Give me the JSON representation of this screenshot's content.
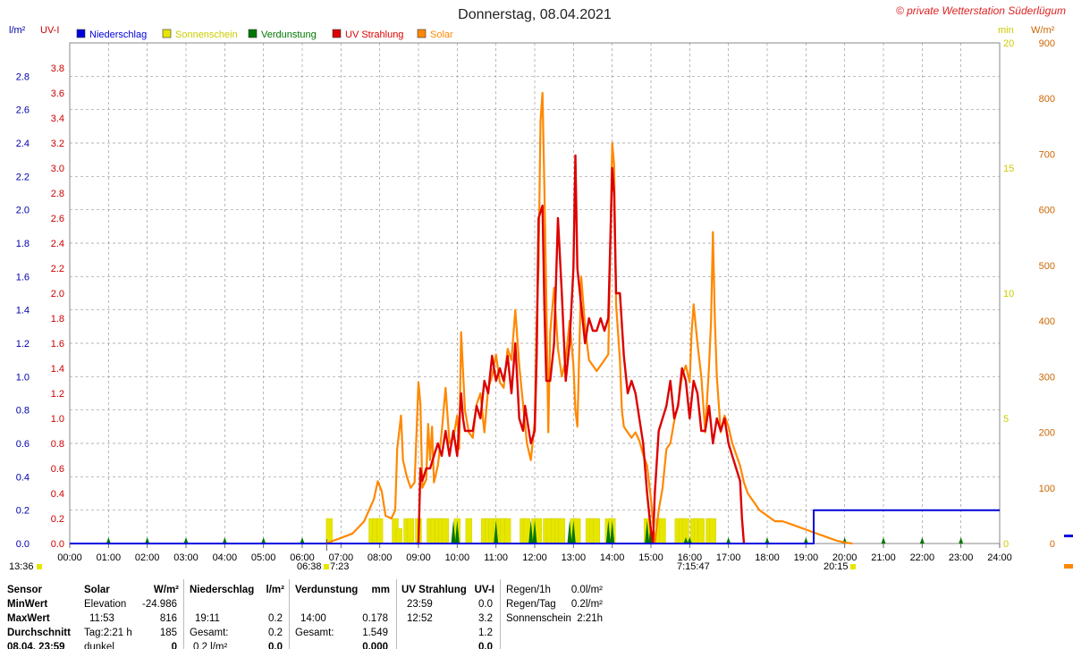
{
  "title": "Donnerstag, 08.04.2021",
  "copyright": "© private Wetterstation Süderlügum",
  "units": {
    "rain": "l/m²",
    "uv": "UV-I",
    "sun": "min",
    "solar": "W/m²"
  },
  "legend": [
    {
      "name": "Niederschlag",
      "color": "#0000dd"
    },
    {
      "name": "Sonnenschein",
      "color": "#e6e600"
    },
    {
      "name": "Verdunstung",
      "color": "#007700"
    },
    {
      "name": "UV Strahlung",
      "color": "#dd0000"
    },
    {
      "name": "Solar",
      "color": "#ff8800"
    }
  ],
  "markers": {
    "left_time": "13:36",
    "sunrise": "06:38",
    "sunrise2": "7:23",
    "solar_noon": "7:15:47",
    "sunset": "20:15"
  },
  "chart_data": {
    "type": "line",
    "title": "Donnerstag, 08.04.2021",
    "x_ticks": [
      "00:00",
      "01:00",
      "02:00",
      "03:00",
      "04:00",
      "05:00",
      "06:00",
      "07:00",
      "08:00",
      "09:00",
      "10:00",
      "11:00",
      "12:00",
      "13:00",
      "14:00",
      "15:00",
      "16:00",
      "17:00",
      "18:00",
      "19:00",
      "20:00",
      "21:00",
      "22:00",
      "23:00",
      "24:00"
    ],
    "axes": {
      "rain": {
        "label": "l/m²",
        "min": 0,
        "max": 3.0,
        "ticks": [
          "0.0",
          "0.2",
          "0.4",
          "0.6",
          "0.8",
          "1.0",
          "1.2",
          "1.4",
          "1.6",
          "1.8",
          "2.0",
          "2.2",
          "2.4",
          "2.6",
          "2.8"
        ]
      },
      "uv": {
        "label": "UV-I",
        "min": 0,
        "max": 4.0,
        "ticks": [
          "0.0",
          "0.2",
          "0.4",
          "0.6",
          "0.8",
          "1.0",
          "1.2",
          "1.4",
          "1.6",
          "1.8",
          "2.0",
          "2.2",
          "2.4",
          "2.6",
          "2.8",
          "3.0",
          "3.2",
          "3.4",
          "3.6",
          "3.8"
        ]
      },
      "sun": {
        "label": "min",
        "min": 0,
        "max": 20,
        "ticks": [
          "0",
          "5",
          "10",
          "15",
          "20"
        ]
      },
      "solar": {
        "label": "W/m²",
        "min": 0,
        "max": 900,
        "ticks": [
          "0",
          "100",
          "200",
          "300",
          "400",
          "500",
          "600",
          "700",
          "800",
          "900"
        ]
      }
    },
    "series": {
      "solar": [
        [
          6.6,
          0
        ],
        [
          6.8,
          5
        ],
        [
          7.0,
          10
        ],
        [
          7.3,
          18
        ],
        [
          7.6,
          40
        ],
        [
          7.85,
          80
        ],
        [
          7.95,
          112
        ],
        [
          8.05,
          95
        ],
        [
          8.15,
          50
        ],
        [
          8.3,
          45
        ],
        [
          8.4,
          60
        ],
        [
          8.45,
          170
        ],
        [
          8.55,
          230
        ],
        [
          8.6,
          150
        ],
        [
          8.7,
          120
        ],
        [
          8.8,
          100
        ],
        [
          8.9,
          110
        ],
        [
          9.0,
          290
        ],
        [
          9.05,
          250
        ],
        [
          9.1,
          100
        ],
        [
          9.2,
          115
        ],
        [
          9.25,
          215
        ],
        [
          9.3,
          150
        ],
        [
          9.35,
          210
        ],
        [
          9.4,
          110
        ],
        [
          9.5,
          140
        ],
        [
          9.6,
          200
        ],
        [
          9.7,
          280
        ],
        [
          9.8,
          180
        ],
        [
          9.9,
          190
        ],
        [
          10.0,
          230
        ],
        [
          10.05,
          170
        ],
        [
          10.1,
          380
        ],
        [
          10.2,
          240
        ],
        [
          10.3,
          200
        ],
        [
          10.4,
          190
        ],
        [
          10.5,
          250
        ],
        [
          10.6,
          270
        ],
        [
          10.7,
          200
        ],
        [
          10.8,
          280
        ],
        [
          10.9,
          300
        ],
        [
          11.0,
          340
        ],
        [
          11.1,
          290
        ],
        [
          11.2,
          280
        ],
        [
          11.3,
          350
        ],
        [
          11.4,
          330
        ],
        [
          11.5,
          420
        ],
        [
          11.6,
          320
        ],
        [
          11.7,
          250
        ],
        [
          11.8,
          180
        ],
        [
          11.9,
          150
        ],
        [
          12.0,
          220
        ],
        [
          12.05,
          400
        ],
        [
          12.1,
          500
        ],
        [
          12.15,
          760
        ],
        [
          12.2,
          810
        ],
        [
          12.25,
          640
        ],
        [
          12.3,
          440
        ],
        [
          12.35,
          200
        ],
        [
          12.4,
          380
        ],
        [
          12.5,
          460
        ],
        [
          12.6,
          350
        ],
        [
          12.7,
          300
        ],
        [
          12.8,
          330
        ],
        [
          12.9,
          400
        ],
        [
          13.0,
          320
        ],
        [
          13.05,
          240
        ],
        [
          13.1,
          210
        ],
        [
          13.2,
          480
        ],
        [
          13.3,
          390
        ],
        [
          13.4,
          330
        ],
        [
          13.5,
          320
        ],
        [
          13.6,
          310
        ],
        [
          13.7,
          320
        ],
        [
          13.8,
          330
        ],
        [
          13.9,
          340
        ],
        [
          14.0,
          720
        ],
        [
          14.05,
          680
        ],
        [
          14.1,
          430
        ],
        [
          14.2,
          330
        ],
        [
          14.25,
          240
        ],
        [
          14.3,
          210
        ],
        [
          14.4,
          200
        ],
        [
          14.5,
          190
        ],
        [
          14.6,
          200
        ],
        [
          14.7,
          185
        ],
        [
          14.8,
          160
        ],
        [
          14.9,
          140
        ],
        [
          15.0,
          80
        ],
        [
          15.1,
          0
        ],
        [
          15.2,
          60
        ],
        [
          15.3,
          100
        ],
        [
          15.4,
          170
        ],
        [
          15.5,
          180
        ],
        [
          15.6,
          220
        ],
        [
          15.7,
          250
        ],
        [
          15.8,
          300
        ],
        [
          15.9,
          320
        ],
        [
          16.0,
          290
        ],
        [
          16.05,
          380
        ],
        [
          16.1,
          430
        ],
        [
          16.2,
          360
        ],
        [
          16.3,
          300
        ],
        [
          16.4,
          200
        ],
        [
          16.5,
          320
        ],
        [
          16.55,
          400
        ],
        [
          16.6,
          560
        ],
        [
          16.65,
          400
        ],
        [
          16.7,
          300
        ],
        [
          16.8,
          200
        ],
        [
          16.9,
          230
        ],
        [
          17.0,
          210
        ],
        [
          17.1,
          180
        ],
        [
          17.2,
          160
        ],
        [
          17.3,
          140
        ],
        [
          17.4,
          110
        ],
        [
          17.5,
          90
        ],
        [
          17.6,
          80
        ],
        [
          17.7,
          70
        ],
        [
          17.8,
          60
        ],
        [
          17.9,
          55
        ],
        [
          18.0,
          50
        ],
        [
          18.1,
          45
        ],
        [
          18.2,
          40
        ],
        [
          18.4,
          40
        ],
        [
          18.6,
          35
        ],
        [
          18.8,
          30
        ],
        [
          19.0,
          25
        ],
        [
          19.2,
          20
        ],
        [
          19.4,
          15
        ],
        [
          19.6,
          10
        ],
        [
          19.8,
          5
        ],
        [
          20.0,
          2
        ],
        [
          20.2,
          0
        ]
      ],
      "uv": [
        [
          8.95,
          0
        ],
        [
          9.0,
          0
        ],
        [
          9.05,
          0.6
        ],
        [
          9.1,
          0.5
        ],
        [
          9.2,
          0.6
        ],
        [
          9.3,
          0.6
        ],
        [
          9.4,
          0.7
        ],
        [
          9.5,
          0.8
        ],
        [
          9.6,
          0.7
        ],
        [
          9.7,
          0.9
        ],
        [
          9.8,
          0.7
        ],
        [
          9.9,
          0.9
        ],
        [
          10.0,
          0.7
        ],
        [
          10.1,
          1.2
        ],
        [
          10.15,
          1.0
        ],
        [
          10.2,
          0.9
        ],
        [
          10.3,
          0.9
        ],
        [
          10.4,
          0.9
        ],
        [
          10.5,
          1.1
        ],
        [
          10.6,
          1.0
        ],
        [
          10.7,
          1.3
        ],
        [
          10.8,
          1.2
        ],
        [
          10.9,
          1.5
        ],
        [
          11.0,
          1.3
        ],
        [
          11.1,
          1.4
        ],
        [
          11.2,
          1.3
        ],
        [
          11.3,
          1.5
        ],
        [
          11.4,
          1.2
        ],
        [
          11.5,
          1.6
        ],
        [
          11.6,
          1.0
        ],
        [
          11.7,
          0.9
        ],
        [
          11.75,
          1.1
        ],
        [
          11.8,
          1.0
        ],
        [
          11.9,
          0.8
        ],
        [
          12.0,
          0.9
        ],
        [
          12.05,
          1.5
        ],
        [
          12.1,
          2.6
        ],
        [
          12.2,
          2.7
        ],
        [
          12.25,
          1.9
        ],
        [
          12.3,
          1.3
        ],
        [
          12.4,
          1.3
        ],
        [
          12.5,
          1.6
        ],
        [
          12.6,
          2.6
        ],
        [
          12.7,
          2.0
        ],
        [
          12.8,
          1.3
        ],
        [
          12.9,
          1.6
        ],
        [
          13.0,
          2.2
        ],
        [
          13.05,
          3.1
        ],
        [
          13.1,
          2.2
        ],
        [
          13.2,
          1.9
        ],
        [
          13.3,
          1.6
        ],
        [
          13.4,
          1.8
        ],
        [
          13.5,
          1.7
        ],
        [
          13.6,
          1.7
        ],
        [
          13.7,
          1.8
        ],
        [
          13.8,
          1.7
        ],
        [
          13.9,
          1.8
        ],
        [
          14.0,
          3.0
        ],
        [
          14.05,
          2.8
        ],
        [
          14.1,
          2.0
        ],
        [
          14.2,
          2.0
        ],
        [
          14.3,
          1.5
        ],
        [
          14.4,
          1.2
        ],
        [
          14.5,
          1.3
        ],
        [
          14.6,
          1.2
        ],
        [
          14.7,
          1.0
        ],
        [
          14.8,
          0.8
        ],
        [
          14.9,
          0.4
        ],
        [
          15.0,
          0.1
        ],
        [
          15.05,
          0
        ],
        [
          15.1,
          0.4
        ],
        [
          15.2,
          0.9
        ],
        [
          15.3,
          1.0
        ],
        [
          15.4,
          1.1
        ],
        [
          15.5,
          1.3
        ],
        [
          15.6,
          1.0
        ],
        [
          15.7,
          1.1
        ],
        [
          15.8,
          1.4
        ],
        [
          15.9,
          1.3
        ],
        [
          16.0,
          1.0
        ],
        [
          16.1,
          1.3
        ],
        [
          16.2,
          1.2
        ],
        [
          16.3,
          0.9
        ],
        [
          16.4,
          0.9
        ],
        [
          16.5,
          1.1
        ],
        [
          16.6,
          0.8
        ],
        [
          16.7,
          1.0
        ],
        [
          16.8,
          0.9
        ],
        [
          16.9,
          1.0
        ],
        [
          17.0,
          0.8
        ],
        [
          17.1,
          0.7
        ],
        [
          17.2,
          0.6
        ],
        [
          17.3,
          0.5
        ],
        [
          17.35,
          0.2
        ],
        [
          17.4,
          0
        ]
      ],
      "rain": [
        [
          0,
          0
        ],
        [
          19.2,
          0
        ],
        [
          19.2,
          0.2
        ],
        [
          24,
          0.2
        ]
      ],
      "sun_bars": [
        [
          6.7,
          1.0
        ],
        [
          7.8,
          1.0
        ],
        [
          7.9,
          1.0
        ],
        [
          8.0,
          1.0
        ],
        [
          8.4,
          1.0
        ],
        [
          8.5,
          0.6
        ],
        [
          8.7,
          1.0
        ],
        [
          8.8,
          1.0
        ],
        [
          9.0,
          1.0
        ],
        [
          9.3,
          1.0
        ],
        [
          9.4,
          1.0
        ],
        [
          9.5,
          1.0
        ],
        [
          9.6,
          1.0
        ],
        [
          9.7,
          1.0
        ],
        [
          10.0,
          1.0
        ],
        [
          10.3,
          1.0
        ],
        [
          10.7,
          1.0
        ],
        [
          10.8,
          1.0
        ],
        [
          10.9,
          1.0
        ],
        [
          11.0,
          1.0
        ],
        [
          11.1,
          1.0
        ],
        [
          11.2,
          1.0
        ],
        [
          11.3,
          1.0
        ],
        [
          11.7,
          1.0
        ],
        [
          11.8,
          1.0
        ],
        [
          12.0,
          1.0
        ],
        [
          12.1,
          1.0
        ],
        [
          12.3,
          1.0
        ],
        [
          12.4,
          1.0
        ],
        [
          12.5,
          1.0
        ],
        [
          12.6,
          1.0
        ],
        [
          12.7,
          1.0
        ],
        [
          13.0,
          1.0
        ],
        [
          13.1,
          1.0
        ],
        [
          13.4,
          1.0
        ],
        [
          13.5,
          1.0
        ],
        [
          13.6,
          1.0
        ],
        [
          13.9,
          1.0
        ],
        [
          14.0,
          1.0
        ],
        [
          14.9,
          1.0
        ],
        [
          15.2,
          1.0
        ],
        [
          15.3,
          1.0
        ],
        [
          15.7,
          1.0
        ],
        [
          15.8,
          1.0
        ],
        [
          15.9,
          1.0
        ],
        [
          16.1,
          1.0
        ],
        [
          16.2,
          1.0
        ],
        [
          16.3,
          1.0
        ],
        [
          16.5,
          1.0
        ],
        [
          16.6,
          1.0
        ]
      ],
      "evap_ticks": [
        1,
        2,
        3,
        4,
        5,
        6,
        9.9,
        10,
        11,
        11.9,
        12,
        12.9,
        13,
        13.9,
        14,
        14.9,
        15,
        15.9,
        16,
        17,
        18,
        19,
        20,
        21,
        22,
        23
      ]
    }
  },
  "stats": {
    "sensor": {
      "head": "Sensor",
      "min": "MinWert",
      "max": "MaxWert",
      "avg": "Durchschnitt",
      "date": "08.04. 23:59"
    },
    "solar": {
      "head": "Solar",
      "unit": "W/m²",
      "rows": [
        [
          "Elevation",
          "-24.986"
        ],
        [
          "11:53",
          "816"
        ],
        [
          "Tag:2:21 h",
          "185"
        ],
        [
          "dunkel",
          "0"
        ]
      ]
    },
    "rain": {
      "head": "Niederschlag",
      "unit": "l/m²",
      "rows": [
        [
          "",
          ""
        ],
        [
          "19:11",
          "0.2"
        ],
        [
          "Gesamt:",
          "0.2"
        ],
        [
          "0.2 l/m²",
          "0.0"
        ]
      ]
    },
    "evap": {
      "head": "Verdunstung",
      "unit": "mm",
      "rows": [
        [
          "",
          ""
        ],
        [
          "14:00",
          "0.178"
        ],
        [
          "Gesamt:",
          "1.549"
        ],
        [
          "",
          "0.000"
        ]
      ]
    },
    "uv": {
      "head": "UV Strahlung",
      "unit": "UV-I",
      "rows": [
        [
          "23:59",
          "0.0"
        ],
        [
          "12:52",
          "3.2"
        ],
        [
          "",
          "1.2"
        ],
        [
          "",
          "0.0"
        ]
      ]
    },
    "extra": [
      [
        "Regen/1h",
        "0.0l/m²"
      ],
      [
        "Regen/Tag",
        "0.2l/m²"
      ],
      [
        "Sonnenschein",
        "2:21h"
      ]
    ]
  }
}
